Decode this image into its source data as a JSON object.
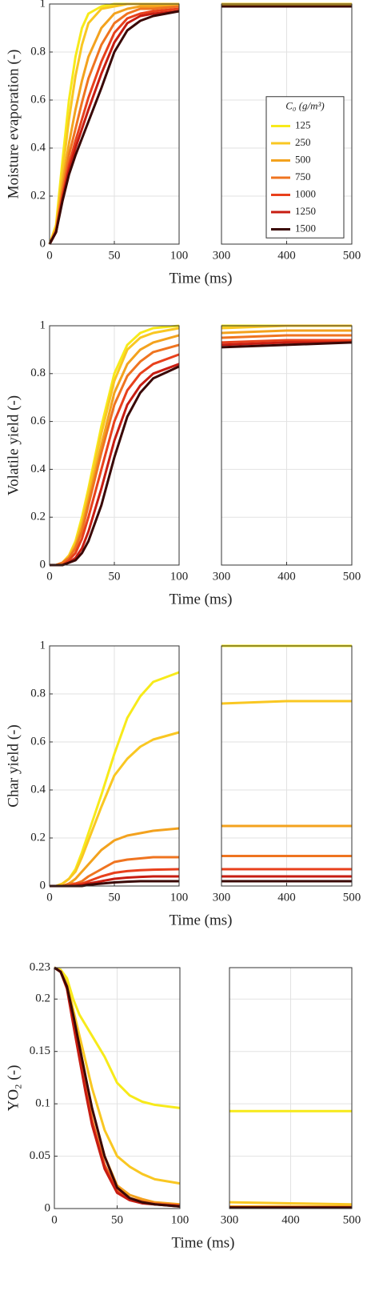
{
  "chart_data": [
    {
      "type": "line",
      "ylabel": "Moisture evaporation (-)",
      "xlabel": "Time (ms)",
      "x": [
        0,
        5,
        10,
        15,
        20,
        25,
        30,
        40,
        50,
        60,
        70,
        80,
        100,
        300,
        400,
        500
      ],
      "xlim": [
        [
          0,
          100
        ],
        [
          300,
          500
        ]
      ],
      "xticks": [
        0,
        50,
        100,
        300,
        400,
        500
      ],
      "ylim": [
        0,
        1
      ],
      "yticks": [
        0,
        0.2,
        0.4,
        0.6,
        0.8,
        1
      ],
      "grid": true,
      "legend": "east",
      "legend_title": "C₀ (g/m³)",
      "series": [
        {
          "name": "125",
          "color": "#f7ea1a",
          "values": [
            0,
            0.08,
            0.35,
            0.6,
            0.78,
            0.9,
            0.96,
            0.99,
            1,
            1,
            1,
            1,
            1,
            1,
            1,
            1
          ]
        },
        {
          "name": "250",
          "color": "#f9c722",
          "values": [
            0,
            0.07,
            0.3,
            0.52,
            0.7,
            0.83,
            0.92,
            0.98,
            0.99,
            1,
            1,
            1,
            1,
            1,
            1,
            1
          ]
        },
        {
          "name": "500",
          "color": "#f3a21e",
          "values": [
            0,
            0.06,
            0.25,
            0.42,
            0.56,
            0.68,
            0.78,
            0.9,
            0.96,
            0.98,
            0.99,
            0.99,
            0.99,
            0.99,
            0.99,
            0.99
          ]
        },
        {
          "name": "750",
          "color": "#ef7420",
          "values": [
            0,
            0.06,
            0.22,
            0.37,
            0.48,
            0.59,
            0.69,
            0.83,
            0.92,
            0.96,
            0.98,
            0.98,
            0.99,
            0.99,
            0.99,
            0.99
          ]
        },
        {
          "name": "1000",
          "color": "#e8401c",
          "values": [
            0,
            0.05,
            0.2,
            0.33,
            0.43,
            0.52,
            0.61,
            0.76,
            0.88,
            0.94,
            0.96,
            0.97,
            0.98,
            0.99,
            0.99,
            0.99
          ]
        },
        {
          "name": "1250",
          "color": "#c71d12",
          "values": [
            0,
            0.05,
            0.19,
            0.31,
            0.4,
            0.48,
            0.56,
            0.71,
            0.84,
            0.92,
            0.95,
            0.96,
            0.97,
            0.99,
            0.99,
            0.99
          ]
        },
        {
          "name": "1500",
          "color": "#3a0806",
          "values": [
            0,
            0.05,
            0.18,
            0.29,
            0.37,
            0.44,
            0.51,
            0.65,
            0.8,
            0.89,
            0.93,
            0.95,
            0.97,
            0.99,
            0.99,
            0.99
          ]
        }
      ]
    },
    {
      "type": "line",
      "ylabel": "Volatile yield (-)",
      "xlabel": "Time (ms)",
      "x": [
        0,
        5,
        10,
        15,
        20,
        25,
        30,
        40,
        50,
        60,
        70,
        80,
        100,
        300,
        400,
        500
      ],
      "xlim": [
        [
          0,
          100
        ],
        [
          300,
          500
        ]
      ],
      "xticks": [
        0,
        50,
        100,
        300,
        400,
        500
      ],
      "ylim": [
        0,
        1
      ],
      "yticks": [
        0,
        0.2,
        0.4,
        0.6,
        0.8,
        1
      ],
      "grid": true,
      "series": [
        {
          "color": "#f7ea1a",
          "values": [
            0,
            0,
            0.01,
            0.04,
            0.1,
            0.2,
            0.32,
            0.58,
            0.8,
            0.92,
            0.97,
            0.99,
            1,
            1,
            1,
            1
          ]
        },
        {
          "color": "#f9c722",
          "values": [
            0,
            0,
            0.01,
            0.04,
            0.09,
            0.18,
            0.3,
            0.55,
            0.77,
            0.9,
            0.95,
            0.97,
            0.99,
            0.99,
            1,
            1
          ]
        },
        {
          "color": "#f3a21e",
          "values": [
            0,
            0,
            0.01,
            0.03,
            0.08,
            0.16,
            0.27,
            0.5,
            0.72,
            0.84,
            0.9,
            0.93,
            0.96,
            0.97,
            0.98,
            0.98
          ]
        },
        {
          "color": "#ef7420",
          "values": [
            0,
            0,
            0.01,
            0.03,
            0.07,
            0.14,
            0.25,
            0.47,
            0.67,
            0.79,
            0.85,
            0.89,
            0.92,
            0.95,
            0.96,
            0.96
          ]
        },
        {
          "color": "#e8401c",
          "values": [
            0,
            0,
            0,
            0.02,
            0.05,
            0.11,
            0.2,
            0.4,
            0.6,
            0.73,
            0.8,
            0.84,
            0.88,
            0.93,
            0.94,
            0.94
          ]
        },
        {
          "color": "#c71d12",
          "values": [
            0,
            0,
            0,
            0.01,
            0.03,
            0.07,
            0.14,
            0.32,
            0.52,
            0.67,
            0.75,
            0.8,
            0.84,
            0.92,
            0.93,
            0.93
          ]
        },
        {
          "color": "#3a0806",
          "values": [
            0,
            0,
            0,
            0.01,
            0.02,
            0.05,
            0.1,
            0.25,
            0.45,
            0.62,
            0.72,
            0.78,
            0.83,
            0.91,
            0.92,
            0.93
          ]
        }
      ]
    },
    {
      "type": "line",
      "ylabel": "Char yield (-)",
      "xlabel": "Time (ms)",
      "x": [
        0,
        5,
        10,
        15,
        20,
        25,
        30,
        40,
        50,
        60,
        70,
        80,
        100,
        300,
        400,
        500
      ],
      "xlim": [
        [
          0,
          100
        ],
        [
          300,
          500
        ]
      ],
      "xticks": [
        0,
        50,
        100,
        300,
        400,
        500
      ],
      "ylim": [
        0,
        1
      ],
      "yticks": [
        0,
        0.2,
        0.4,
        0.6,
        0.8,
        1
      ],
      "grid": true,
      "series": [
        {
          "color": "#f7ea1a",
          "values": [
            0,
            0,
            0.01,
            0.03,
            0.07,
            0.14,
            0.22,
            0.38,
            0.55,
            0.7,
            0.79,
            0.85,
            0.89,
            1,
            1,
            1
          ]
        },
        {
          "color": "#f9c722",
          "values": [
            0,
            0,
            0.01,
            0.03,
            0.06,
            0.12,
            0.19,
            0.33,
            0.46,
            0.53,
            0.58,
            0.61,
            0.64,
            0.76,
            0.77,
            0.77
          ]
        },
        {
          "color": "#f3a21e",
          "values": [
            0,
            0,
            0,
            0.01,
            0.03,
            0.06,
            0.09,
            0.15,
            0.19,
            0.21,
            0.22,
            0.23,
            0.24,
            0.25,
            0.25,
            0.25
          ]
        },
        {
          "color": "#ef7420",
          "values": [
            0,
            0,
            0,
            0.01,
            0.01,
            0.02,
            0.04,
            0.07,
            0.1,
            0.11,
            0.115,
            0.12,
            0.12,
            0.125,
            0.125,
            0.125
          ]
        },
        {
          "color": "#e8401c",
          "values": [
            0,
            0,
            0,
            0,
            0.01,
            0.01,
            0.02,
            0.04,
            0.055,
            0.062,
            0.066,
            0.068,
            0.07,
            0.07,
            0.07,
            0.07
          ]
        },
        {
          "color": "#c71d12",
          "values": [
            0,
            0,
            0,
            0,
            0,
            0.005,
            0.01,
            0.02,
            0.03,
            0.035,
            0.038,
            0.04,
            0.04,
            0.04,
            0.04,
            0.04
          ]
        },
        {
          "color": "#3a0806",
          "values": [
            0,
            0,
            0,
            0,
            0,
            0,
            0.005,
            0.01,
            0.015,
            0.018,
            0.02,
            0.02,
            0.02,
            0.02,
            0.02,
            0.02
          ]
        }
      ]
    },
    {
      "type": "line",
      "ylabel": "YO₂ (-)",
      "xlabel": "Time (ms)",
      "x": [
        0,
        5,
        10,
        15,
        20,
        25,
        30,
        40,
        50,
        60,
        70,
        80,
        100,
        300,
        400,
        500
      ],
      "xlim": [
        [
          0,
          100
        ],
        [
          300,
          500
        ]
      ],
      "xticks": [
        0,
        50,
        100,
        300,
        400,
        500
      ],
      "ylim": [
        0,
        0.23
      ],
      "yticks": [
        0,
        0.05,
        0.1,
        0.15,
        0.2,
        0.23
      ],
      "grid": true,
      "series": [
        {
          "color": "#f7ea1a",
          "values": [
            0.23,
            0.228,
            0.22,
            0.2,
            0.185,
            0.175,
            0.165,
            0.145,
            0.12,
            0.108,
            0.102,
            0.099,
            0.096,
            0.093,
            0.093,
            0.093
          ]
        },
        {
          "color": "#f9c722",
          "values": [
            0.23,
            0.227,
            0.215,
            0.19,
            0.165,
            0.14,
            0.115,
            0.075,
            0.05,
            0.04,
            0.033,
            0.028,
            0.024,
            0.006,
            0.005,
            0.004
          ]
        },
        {
          "color": "#f3a21e",
          "values": [
            0.23,
            0.226,
            0.213,
            0.185,
            0.155,
            0.125,
            0.095,
            0.05,
            0.022,
            0.013,
            0.009,
            0.006,
            0.004,
            0.002,
            0.002,
            0.002
          ]
        },
        {
          "color": "#ef7420",
          "values": [
            0.23,
            0.226,
            0.212,
            0.18,
            0.148,
            0.115,
            0.085,
            0.042,
            0.018,
            0.01,
            0.007,
            0.005,
            0.003,
            0.001,
            0.001,
            0.001
          ]
        },
        {
          "color": "#e8401c",
          "values": [
            0.23,
            0.226,
            0.211,
            0.178,
            0.145,
            0.112,
            0.082,
            0.04,
            0.016,
            0.009,
            0.006,
            0.004,
            0.003,
            0.001,
            0.001,
            0.001
          ]
        },
        {
          "color": "#c71d12",
          "values": [
            0.23,
            0.226,
            0.21,
            0.176,
            0.143,
            0.11,
            0.08,
            0.038,
            0.015,
            0.008,
            0.005,
            0.004,
            0.002,
            0.001,
            0.001,
            0.001
          ]
        },
        {
          "color": "#3a0806",
          "values": [
            0.23,
            0.226,
            0.212,
            0.185,
            0.155,
            0.125,
            0.096,
            0.05,
            0.02,
            0.01,
            0.006,
            0.004,
            0.002,
            0.001,
            0.001,
            0.001
          ]
        }
      ]
    }
  ]
}
